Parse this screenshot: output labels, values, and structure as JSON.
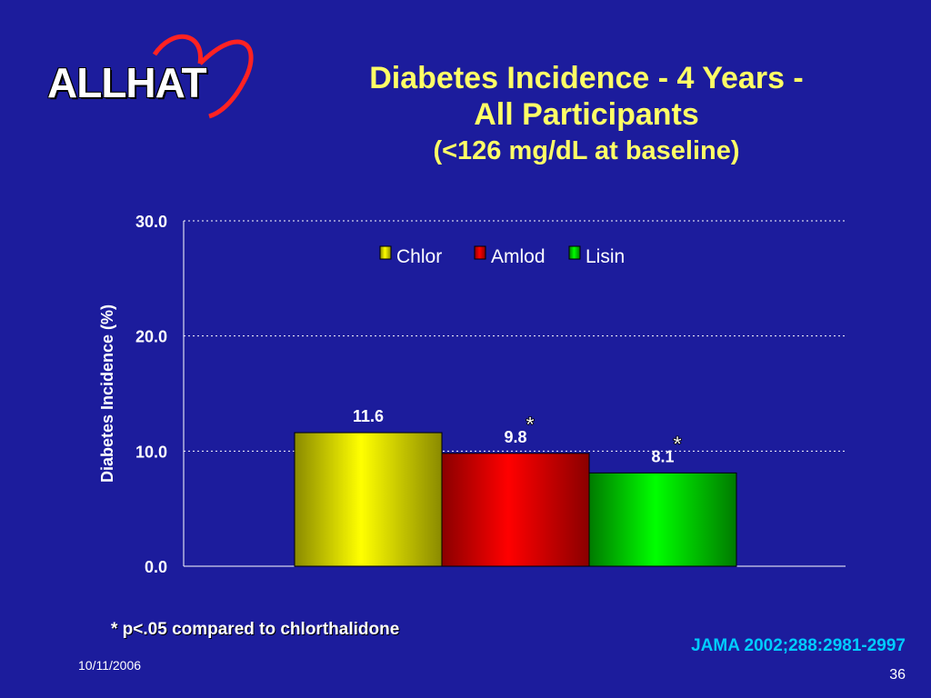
{
  "logo": {
    "text": "ALLHAT"
  },
  "title": {
    "line1": "Diabetes Incidence - 4 Years -",
    "line2": "All Participants",
    "line3": "(<126 mg/dL at baseline)"
  },
  "chart_data": {
    "type": "bar",
    "ylabel": "Diabetes Incidence (%)",
    "ylim": [
      0,
      30
    ],
    "yticks": [
      "0.0",
      "10.0",
      "20.0",
      "30.0"
    ],
    "grid": true,
    "legend_position": "top",
    "series": [
      {
        "name": "Chlor",
        "value": 11.6,
        "label": "11.6",
        "color": "#ffff00",
        "significant": false
      },
      {
        "name": "Amlod",
        "value": 9.8,
        "label": "9.8",
        "color": "#ff0000",
        "significant": true
      },
      {
        "name": "Lisin",
        "value": 8.1,
        "label": "8.1",
        "color": "#00ff00",
        "significant": true
      }
    ],
    "significance_marker": "*"
  },
  "footnote": "* p<.05 compared to chlorthalidone",
  "citation": "JAMA 2002;288:2981-2997",
  "date": "10/11/2006",
  "page_number": "36"
}
